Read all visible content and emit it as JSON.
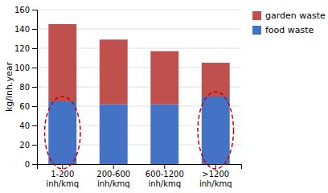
{
  "chart_data": {
    "type": "bar",
    "stacked": true,
    "y_label": "kg/inh.year",
    "categories": [
      "1-200\ninh/kmq",
      "200-600\ninh/kmq",
      "600-1200\ninh/kmq",
      ">1200\ninh/kmq"
    ],
    "series": [
      {
        "name": "food waste",
        "color": "#4472C4",
        "values": [
          65,
          62,
          62,
          70
        ]
      },
      {
        "name": "garden waste",
        "color": "#C0504D",
        "values": [
          80,
          67,
          55,
          35
        ]
      }
    ],
    "ylim": [
      0,
      160
    ],
    "yticks": [
      0,
      20,
      40,
      60,
      80,
      100,
      120,
      140,
      160
    ],
    "grid": true,
    "legend": "right",
    "annotations": [
      {
        "type": "ellipse",
        "series": "food waste",
        "category": "1-200\ninh/kmq",
        "color": "#CC0000",
        "line_style": "dashed"
      },
      {
        "type": "ellipse",
        "series": "food waste",
        "category": ">1200\ninh/kmq",
        "color": "#CC0000",
        "line_style": "dashed"
      }
    ]
  }
}
